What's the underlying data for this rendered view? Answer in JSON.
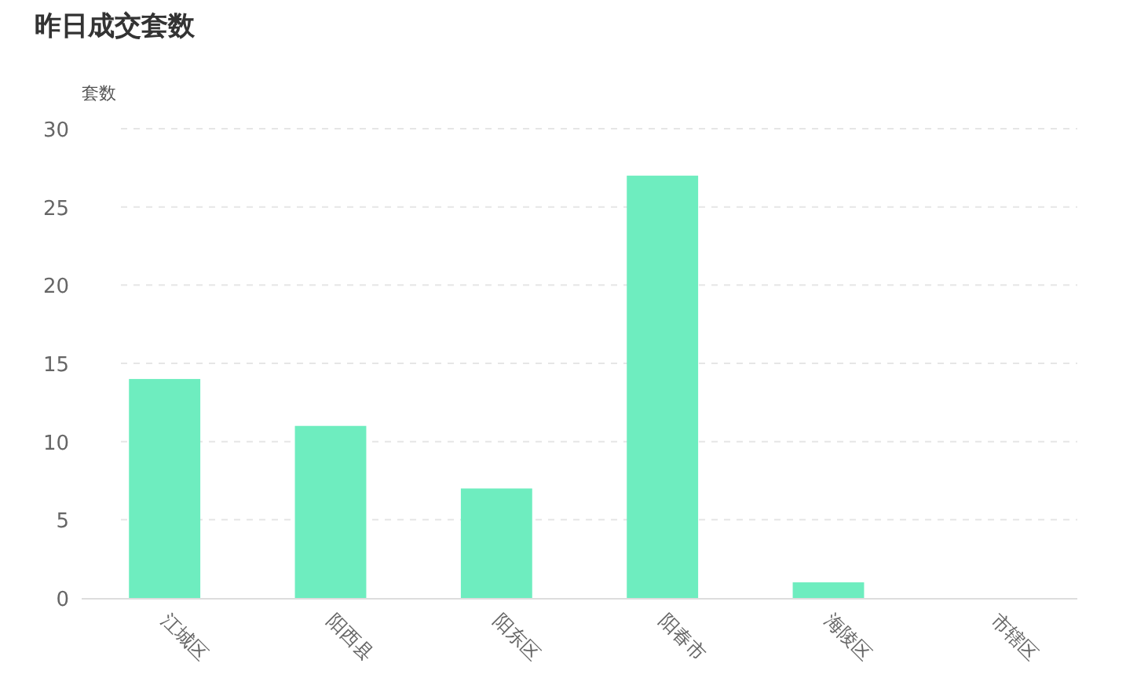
{
  "chart_data": {
    "type": "bar",
    "title": "昨日成交套数",
    "ylabel": "套数",
    "categories": [
      "江城区",
      "阳西县",
      "阳东区",
      "阳春市",
      "海陵区",
      "市辖区"
    ],
    "values": [
      14,
      11,
      7,
      27,
      1,
      0
    ],
    "color": "#6eedbf",
    "ylim": [
      0,
      30
    ],
    "yticks": [
      0,
      5,
      10,
      15,
      20,
      25,
      30
    ],
    "grid": "y"
  }
}
